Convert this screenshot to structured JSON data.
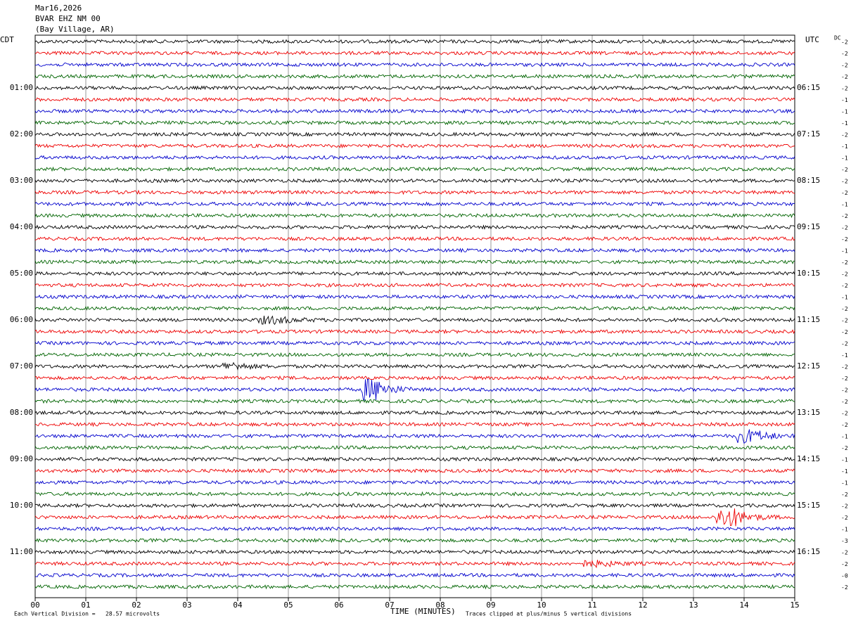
{
  "header": {
    "lines": [
      "Mar16,2026",
      "BVAR EHZ NM 00",
      "(Bay Village, AR)"
    ]
  },
  "left_zone": "CDT",
  "right_zone": "UTC",
  "left_labels": [
    "01:00",
    "02:00",
    "03:00",
    "04:00",
    "05:00",
    "06:00",
    "07:00",
    "08:00",
    "09:00",
    "10:00",
    "11:00"
  ],
  "right_labels": [
    "06:15",
    "07:15",
    "08:15",
    "09:15",
    "10:15",
    "11:15",
    "12:15",
    "13:15",
    "14:15",
    "15:15",
    "16:15"
  ],
  "dc_label": "DC",
  "dc_values": [
    "-2",
    "-2",
    "-2",
    "-2",
    "-2",
    "-1",
    "-1",
    "-1",
    "-2",
    "-1",
    "-1",
    "-2",
    "-2",
    "-2",
    "-1",
    "-2",
    "-2",
    "-2",
    "-1",
    "-2",
    "-2",
    "-2",
    "-1",
    "-2",
    "-2",
    "-2",
    "-2",
    "-1",
    "-2",
    "-2",
    "-2",
    "-2",
    "-2",
    "-2",
    "-1",
    "-2",
    "-1",
    "-1",
    "-1",
    "-2",
    "-2",
    "-2",
    "-1",
    "-3",
    "-2",
    "-2",
    "-0",
    "-2"
  ],
  "x_ticks": [
    "00",
    "01",
    "02",
    "03",
    "04",
    "05",
    "06",
    "07",
    "08",
    "09",
    "10",
    "11",
    "12",
    "13",
    "14",
    "15"
  ],
  "x_title": "TIME (MINUTES)",
  "footer_left": "Each Vertical Division =   28.57 microvolts",
  "footer_right": "Traces clipped at plus/minus 5 vertical divisions"
}
